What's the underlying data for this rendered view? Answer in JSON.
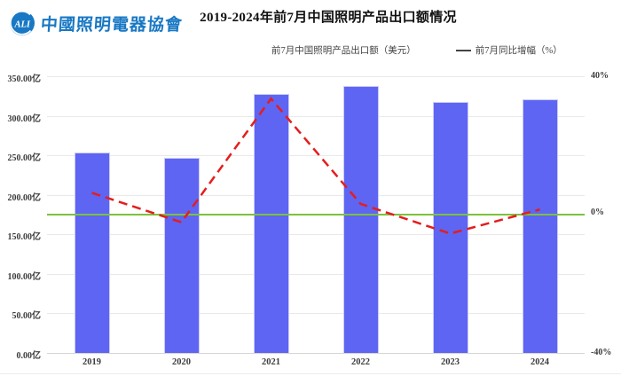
{
  "header": {
    "logo": {
      "badge_letters": "ALI",
      "org_name": "中國照明電器協會"
    },
    "title": "2019-2024年前7月中国照明产品出口额情况"
  },
  "legend": {
    "items": [
      {
        "label": "前7月中国照明产品出口额（美元）",
        "marker": "bar",
        "color": "#5b64ee"
      },
      {
        "label": "前7月同比增幅（%）",
        "marker": "line",
        "color": "#e51d1d"
      }
    ]
  },
  "chart_data": {
    "type": "bar",
    "combo": "bar+line",
    "title": "2019-2024年前7月中国照明产品出口额情况",
    "categories": [
      "2019",
      "2020",
      "2021",
      "2022",
      "2023",
      "2024"
    ],
    "series": [
      {
        "name": "前7月中国照明产品出口额（美元）",
        "type": "bar",
        "unit": "亿美元",
        "values": [
          253,
          247,
          327.5,
          338,
          317,
          320.5
        ],
        "color": "#5e65f2"
      },
      {
        "name": "前7月同比增幅（%）",
        "type": "line",
        "style": "dashed",
        "unit": "%",
        "values": [
          6.3,
          -2.2,
          33.5,
          3.1,
          -5.5,
          1.5
        ],
        "color": "#e51d1d"
      }
    ],
    "left_axis": {
      "min": 0,
      "max": 350,
      "tick_step": 50,
      "tick_labels_top_to_bottom": [
        "350.00亿",
        "300.00亿",
        "250.00亿",
        "200.00亿",
        "150.00亿",
        "100.00亿",
        "50.00亿",
        "0.00亿"
      ]
    },
    "right_axis": {
      "min": -40,
      "max": 40,
      "labels": [
        {
          "text": "40%",
          "pos": "top"
        },
        {
          "text": "0%",
          "pos": "middle"
        },
        {
          "text": "-40%",
          "pos": "bottom"
        }
      ]
    },
    "zero_line": {
      "value": 0,
      "color": "#7cc23b"
    },
    "grid": true,
    "legend_position": "top",
    "colors": {
      "bar": "#5e65f2",
      "bar_border": "#c9cbfa",
      "line": "#e51d1d",
      "zero_line": "#7cc23b",
      "grid": "#e9e9e9",
      "axis_line": "#d5d5d5",
      "axis_text": "#3c3c3c",
      "logo_blue": "#1878c4",
      "title_text": "#111111"
    }
  }
}
